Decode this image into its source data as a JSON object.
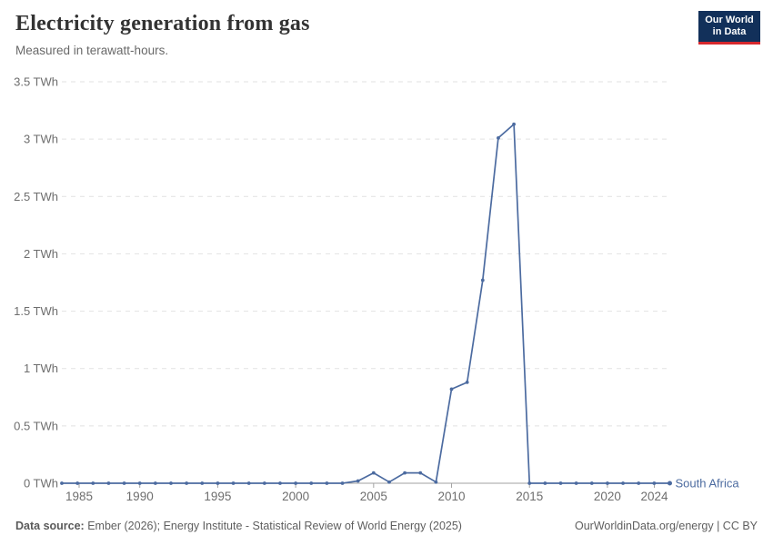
{
  "header": {
    "title": "Electricity generation from gas",
    "subtitle": "Measured in terawatt-hours."
  },
  "logo": {
    "line1": "Our World",
    "line2": "in Data",
    "bg_color": "#12305a",
    "bar_color": "#d7282d"
  },
  "chart_data": {
    "type": "line",
    "title": "Electricity generation from gas",
    "unit": "TWh",
    "grid": "horizontal-dashed",
    "legend_position": "end-of-line",
    "xlim": [
      1985,
      2024
    ],
    "ylim": [
      0,
      3.5
    ],
    "x_ticks": [
      1985,
      1990,
      1995,
      2000,
      2005,
      2010,
      2015,
      2020,
      2024
    ],
    "y_ticks": [
      {
        "value": 0,
        "label": "0 TWh"
      },
      {
        "value": 0.5,
        "label": "0.5 TWh"
      },
      {
        "value": 1,
        "label": "1 TWh"
      },
      {
        "value": 1.5,
        "label": "1.5 TWh"
      },
      {
        "value": 2,
        "label": "2 TWh"
      },
      {
        "value": 2.5,
        "label": "2.5 TWh"
      },
      {
        "value": 3,
        "label": "3 TWh"
      },
      {
        "value": 3.5,
        "label": "3.5 TWh"
      }
    ],
    "x": [
      1985,
      1986,
      1987,
      1988,
      1989,
      1990,
      1991,
      1992,
      1993,
      1994,
      1995,
      1996,
      1997,
      1998,
      1999,
      2000,
      2001,
      2002,
      2003,
      2004,
      2005,
      2006,
      2007,
      2008,
      2009,
      2010,
      2011,
      2012,
      2013,
      2014,
      2015,
      2016,
      2017,
      2018,
      2019,
      2020,
      2021,
      2022,
      2023,
      2024
    ],
    "series": [
      {
        "name": "South Africa",
        "color": "#4c6ba0",
        "values": [
          0,
          0,
          0,
          0,
          0,
          0,
          0,
          0,
          0,
          0,
          0,
          0,
          0,
          0,
          0,
          0,
          0,
          0,
          0,
          0.02,
          0.09,
          0.01,
          0.09,
          0.09,
          0.01,
          0.82,
          0.88,
          1.77,
          3.01,
          3.13,
          0,
          0,
          0,
          0,
          0,
          0,
          0,
          0,
          0,
          0
        ]
      }
    ],
    "colors": {
      "gridline": "#e2e2e2",
      "axis_line": "#a2a2a2",
      "tick_label": "#6e6e6e"
    }
  },
  "footer": {
    "source_label": "Data source:",
    "source_text": " Ember (2026); Energy Institute - Statistical Review of World Energy (2025)",
    "credit": "OurWorldinData.org/energy | CC BY"
  }
}
